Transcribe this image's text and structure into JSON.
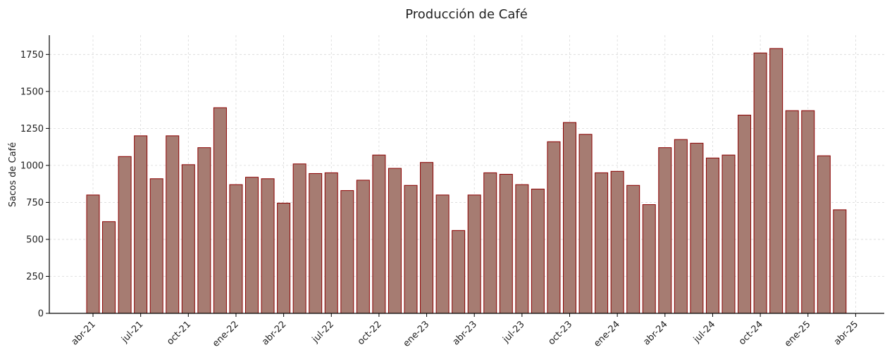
{
  "chart_data": {
    "type": "bar",
    "title": "Producción de Café",
    "xlabel": "",
    "ylabel": "Sacos de Café",
    "ylim": [
      0,
      1880
    ],
    "yticks": [
      0,
      250,
      500,
      750,
      1000,
      1250,
      1500,
      1750
    ],
    "grid": true,
    "colors": {
      "bar_fill": "#a67c72",
      "bar_edge": "#8b0000",
      "grid": "#d9d9d9",
      "axis": "#000000"
    },
    "x_tick_labels": [
      "abr-21",
      "jul-21",
      "oct-21",
      "ene-22",
      "abr-22",
      "jul-22",
      "oct-22",
      "ene-23",
      "abr-23",
      "jul-23",
      "oct-23",
      "ene-24",
      "abr-24",
      "jul-24",
      "oct-24",
      "ene-25",
      "abr-25"
    ],
    "categories": [
      "2021-04",
      "2021-05",
      "2021-06",
      "2021-07",
      "2021-08",
      "2021-09",
      "2021-10",
      "2021-11",
      "2021-12",
      "2022-01",
      "2022-02",
      "2022-03",
      "2022-04",
      "2022-05",
      "2022-06",
      "2022-07",
      "2022-08",
      "2022-09",
      "2022-10",
      "2022-11",
      "2022-12",
      "2023-01",
      "2023-02",
      "2023-03",
      "2023-04",
      "2023-05",
      "2023-06",
      "2023-07",
      "2023-08",
      "2023-09",
      "2023-10",
      "2023-11",
      "2023-12",
      "2024-01",
      "2024-02",
      "2024-03",
      "2024-04",
      "2024-05",
      "2024-06",
      "2024-07",
      "2024-08",
      "2024-09",
      "2024-10",
      "2024-11",
      "2024-12",
      "2025-01",
      "2025-02",
      "2025-03"
    ],
    "values": [
      800,
      620,
      1060,
      1200,
      910,
      1200,
      1005,
      1120,
      1390,
      870,
      920,
      910,
      745,
      1010,
      945,
      950,
      830,
      900,
      1070,
      980,
      865,
      1020,
      800,
      560,
      800,
      950,
      940,
      870,
      840,
      1160,
      1290,
      1210,
      950,
      960,
      865,
      735,
      1120,
      1175,
      1150,
      1050,
      1070,
      1340,
      1760,
      1790,
      1370,
      1370,
      1065,
      700
    ]
  }
}
